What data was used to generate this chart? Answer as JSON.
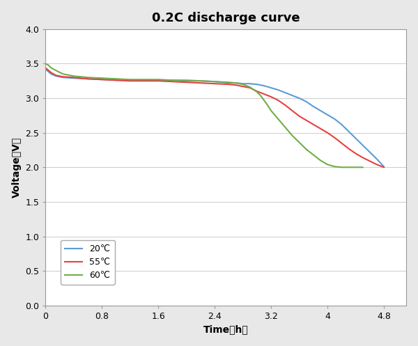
{
  "title": "0.2C discharge curve",
  "xlabel": "Time（h）",
  "ylabel": "Voltage（V）",
  "xlim": [
    0,
    5.12
  ],
  "ylim": [
    0.0,
    4.0
  ],
  "xticks": [
    0,
    0.8,
    1.6,
    2.4,
    3.2,
    4.0,
    4.8
  ],
  "yticks": [
    0.0,
    0.5,
    1.0,
    1.5,
    2.0,
    2.5,
    3.0,
    3.5,
    4.0
  ],
  "legend_labels": [
    "20℃",
    "55℃",
    "60℃"
  ],
  "line_colors": [
    "#5b9bd5",
    "#e84040",
    "#70ad47"
  ],
  "outer_bg": "#e8e8e8",
  "plot_bg_color": "#ffffff",
  "series": {
    "20C": {
      "x": [
        0.0,
        0.08,
        0.15,
        0.25,
        0.4,
        0.6,
        0.8,
        1.0,
        1.2,
        1.4,
        1.6,
        1.8,
        2.0,
        2.2,
        2.4,
        2.6,
        2.7,
        2.8,
        2.9,
        3.0,
        3.1,
        3.2,
        3.3,
        3.4,
        3.5,
        3.6,
        3.7,
        3.8,
        3.9,
        4.0,
        4.1,
        4.2,
        4.3,
        4.4,
        4.5,
        4.6,
        4.7,
        4.8
      ],
      "y": [
        3.42,
        3.35,
        3.32,
        3.3,
        3.29,
        3.28,
        3.27,
        3.26,
        3.26,
        3.26,
        3.26,
        3.26,
        3.25,
        3.25,
        3.24,
        3.22,
        3.22,
        3.21,
        3.21,
        3.2,
        3.18,
        3.15,
        3.12,
        3.08,
        3.04,
        3.0,
        2.95,
        2.88,
        2.82,
        2.76,
        2.7,
        2.62,
        2.52,
        2.42,
        2.32,
        2.22,
        2.12,
        2.01
      ]
    },
    "55C": {
      "x": [
        0.0,
        0.08,
        0.15,
        0.25,
        0.4,
        0.6,
        0.8,
        1.0,
        1.2,
        1.4,
        1.6,
        1.8,
        2.0,
        2.2,
        2.4,
        2.6,
        2.7,
        2.8,
        2.9,
        3.0,
        3.1,
        3.2,
        3.3,
        3.4,
        3.5,
        3.6,
        3.7,
        3.8,
        3.9,
        4.0,
        4.1,
        4.2,
        4.3,
        4.4,
        4.5,
        4.6,
        4.7,
        4.8
      ],
      "y": [
        3.44,
        3.37,
        3.33,
        3.31,
        3.3,
        3.28,
        3.27,
        3.26,
        3.25,
        3.25,
        3.25,
        3.24,
        3.23,
        3.22,
        3.21,
        3.2,
        3.19,
        3.17,
        3.15,
        3.1,
        3.06,
        3.02,
        2.97,
        2.9,
        2.82,
        2.74,
        2.68,
        2.62,
        2.56,
        2.5,
        2.43,
        2.35,
        2.27,
        2.2,
        2.14,
        2.09,
        2.04,
        2.0
      ]
    },
    "60C": {
      "x": [
        0.0,
        0.04,
        0.08,
        0.15,
        0.25,
        0.4,
        0.6,
        0.8,
        1.0,
        1.2,
        1.4,
        1.6,
        1.8,
        2.0,
        2.2,
        2.4,
        2.6,
        2.7,
        2.8,
        2.9,
        3.0,
        3.05,
        3.1,
        3.15,
        3.2,
        3.3,
        3.4,
        3.5,
        3.6,
        3.7,
        3.8,
        3.9,
        4.0,
        4.1,
        4.2,
        4.3,
        4.4,
        4.5
      ],
      "y": [
        3.5,
        3.48,
        3.44,
        3.4,
        3.35,
        3.32,
        3.3,
        3.29,
        3.28,
        3.27,
        3.27,
        3.27,
        3.26,
        3.26,
        3.25,
        3.24,
        3.23,
        3.22,
        3.2,
        3.16,
        3.09,
        3.04,
        2.97,
        2.9,
        2.82,
        2.7,
        2.58,
        2.46,
        2.36,
        2.26,
        2.18,
        2.1,
        2.04,
        2.01,
        2.0,
        2.0,
        2.0,
        2.0
      ]
    }
  }
}
